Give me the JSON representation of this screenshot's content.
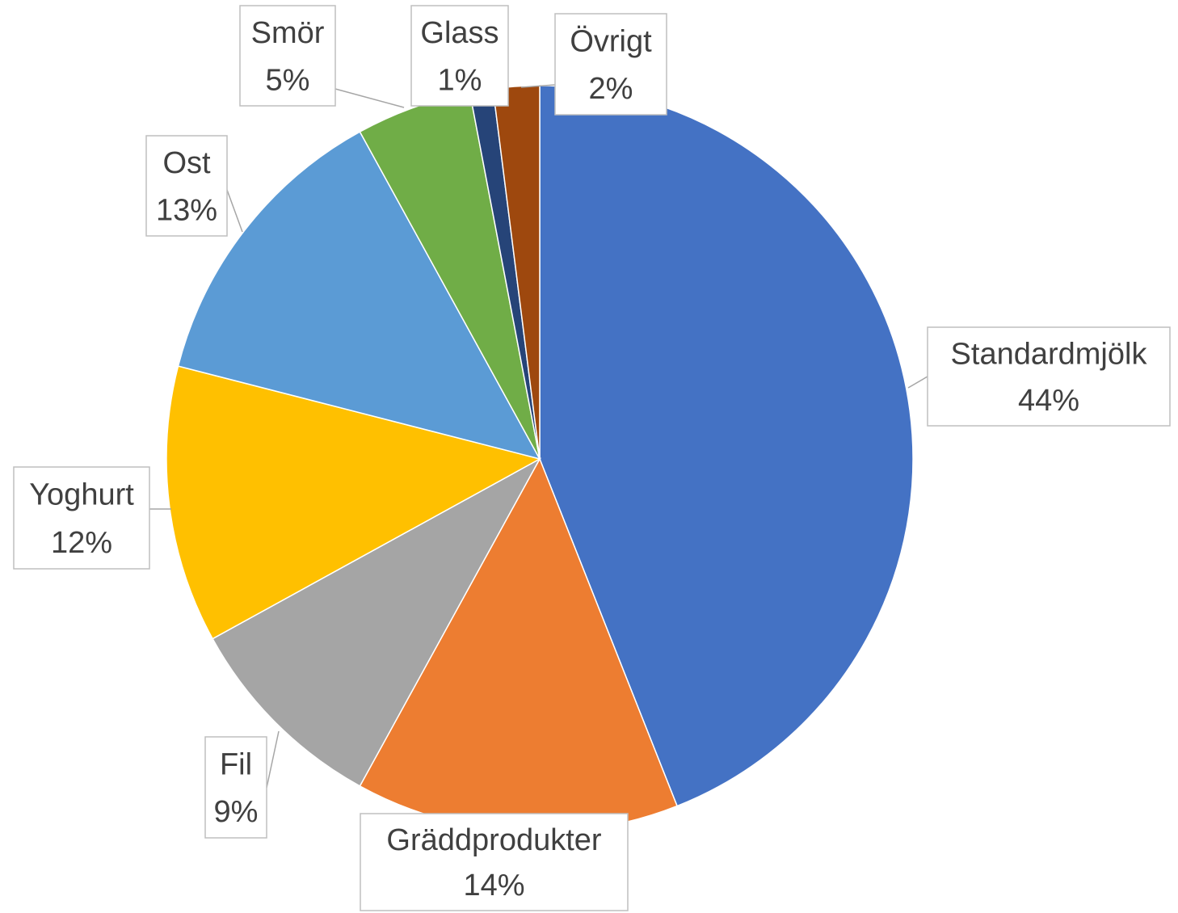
{
  "chart_data": {
    "type": "pie",
    "categories": [
      "Standardmjölk",
      "Gräddprodukter",
      "Fil",
      "Yoghurt",
      "Ost",
      "Smör",
      "Glass",
      "Övrigt"
    ],
    "values": [
      44,
      14,
      9,
      12,
      13,
      5,
      1,
      2
    ],
    "value_labels": [
      "44%",
      "14%",
      "9%",
      "12%",
      "13%",
      "5%",
      "1%",
      "2%"
    ],
    "colors": [
      "#4472C4",
      "#ED7D31",
      "#A5A5A5",
      "#FFC000",
      "#5B9BD5",
      "#70AD47",
      "#264478",
      "#9E480E"
    ]
  }
}
